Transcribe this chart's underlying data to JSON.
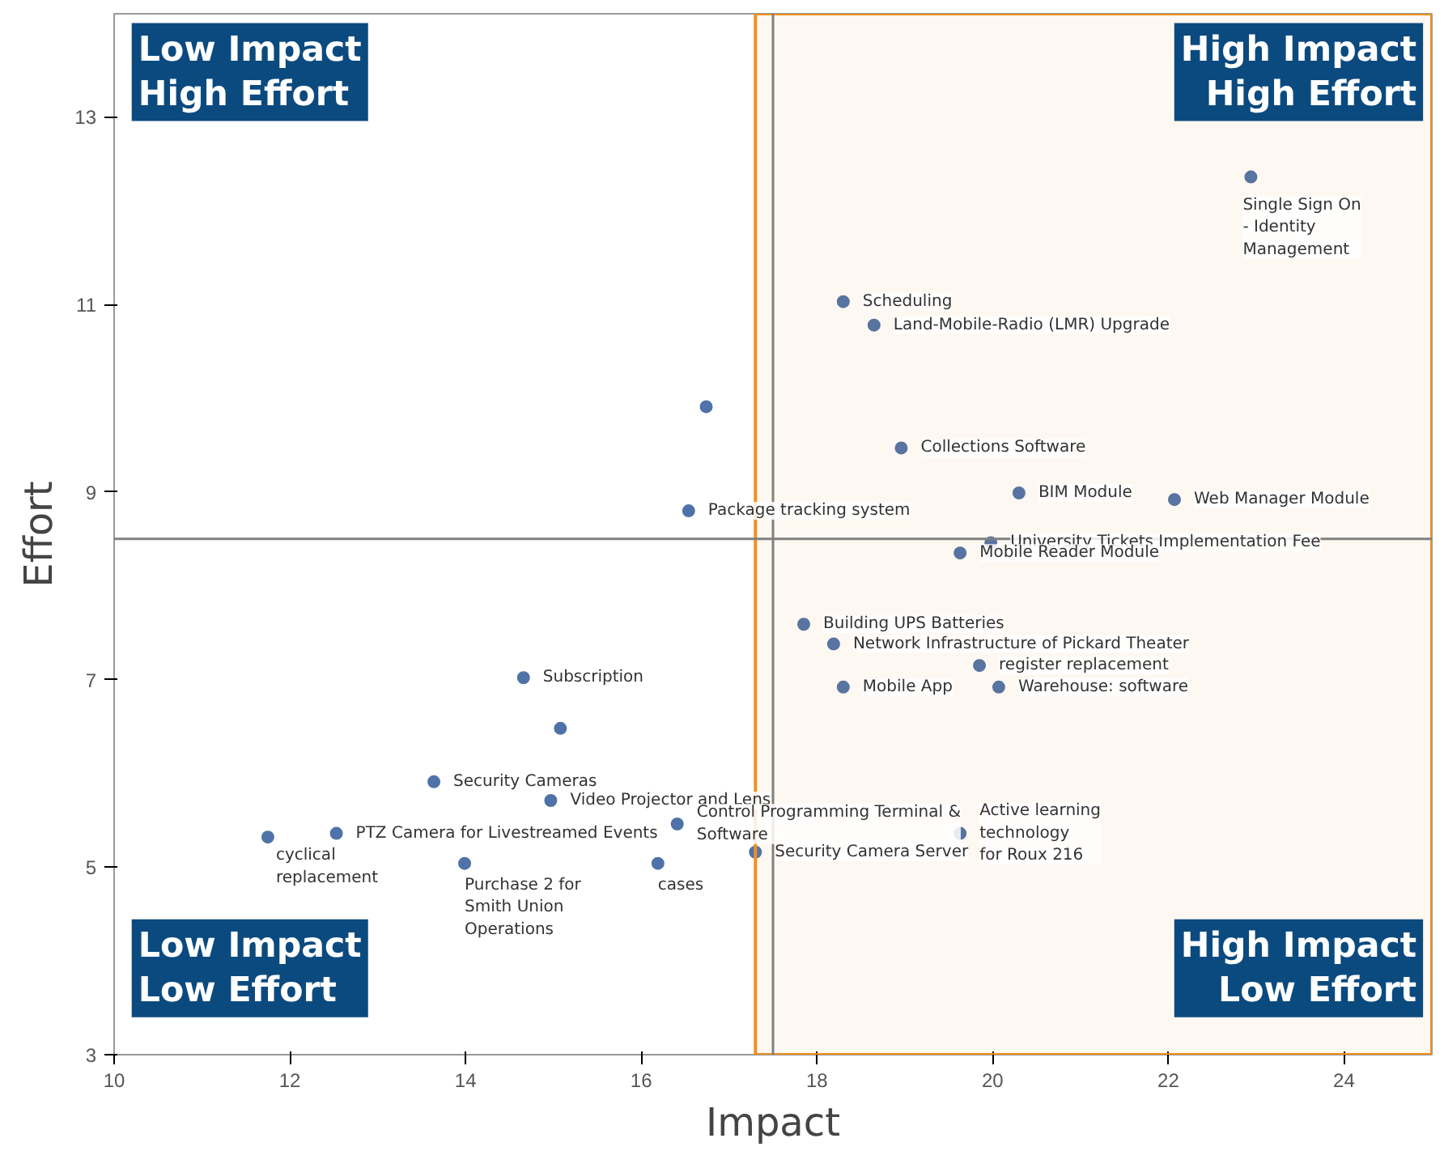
{
  "chart_data": {
    "type": "scatter",
    "xlabel": "Impact",
    "ylabel": "Effort",
    "xlim": [
      10,
      25
    ],
    "ylim": [
      3,
      14.1
    ],
    "xticks": [
      10,
      12,
      14,
      16,
      18,
      20,
      22,
      24
    ],
    "yticks": [
      3,
      5,
      7,
      9,
      11,
      13
    ],
    "grid": false,
    "marker": "circle",
    "series": [
      {
        "color": "#4f73a8",
        "x": [
          22.94,
          18.3,
          18.65,
          16.74,
          16.54,
          18.96,
          20.3,
          22.07,
          19.98,
          19.63,
          17.85,
          18.19,
          18.3,
          19.85,
          20.07,
          14.66,
          15.08,
          13.64,
          14.97,
          12.53,
          11.75,
          13.99,
          16.41,
          16.19,
          17.3,
          19.63
        ],
        "values": [
          12.36,
          11.03,
          10.78,
          9.91,
          8.8,
          9.47,
          8.99,
          8.92,
          8.46,
          8.35,
          7.59,
          7.38,
          6.92,
          7.15,
          6.92,
          7.02,
          6.48,
          5.91,
          5.71,
          5.36,
          5.32,
          5.04,
          5.46,
          5.04,
          5.16,
          5.36
        ],
        "value_labels": [
          "Single Sign On\n- Identity\nManagement",
          "Scheduling",
          "Land-Mobile-Radio (LMR) Upgrade",
          null,
          "Package tracking system",
          "Collections Software",
          "BIM Module",
          "Web Manager Module",
          "University Tickets Implementation Fee",
          "Mobile Reader Module",
          "Building UPS Batteries",
          "Network Infrastructure of Pickard Theater",
          "Mobile App",
          "register replacement",
          "Warehouse: software",
          "Subscription",
          null,
          "Security Cameras",
          "Video Projector and Lens",
          "PTZ Camera for Livestreamed Events",
          "cyclical\nreplacement",
          "Purchase 2 for\nSmith Union\nOperations",
          "Control Programming Terminal &\nSoftware",
          "cases",
          "Security Camera Server",
          "Active learning\ntechnology\nfor Roux 216"
        ]
      }
    ],
    "ref_lines": [
      {
        "axis": "x",
        "value": 17.5,
        "color": "#808080"
      },
      {
        "axis": "y",
        "value": 8.5,
        "color": "#808080"
      }
    ],
    "bands": [
      {
        "axis": "x",
        "from": 17.3,
        "to": 25,
        "color": "#f0901e"
      }
    ],
    "annotations": [
      "Low Impact\nHigh Effort",
      "High Impact\nHigh Effort",
      "Low Impact\nLow Effort",
      "High Impact\nLow Effort"
    ]
  }
}
